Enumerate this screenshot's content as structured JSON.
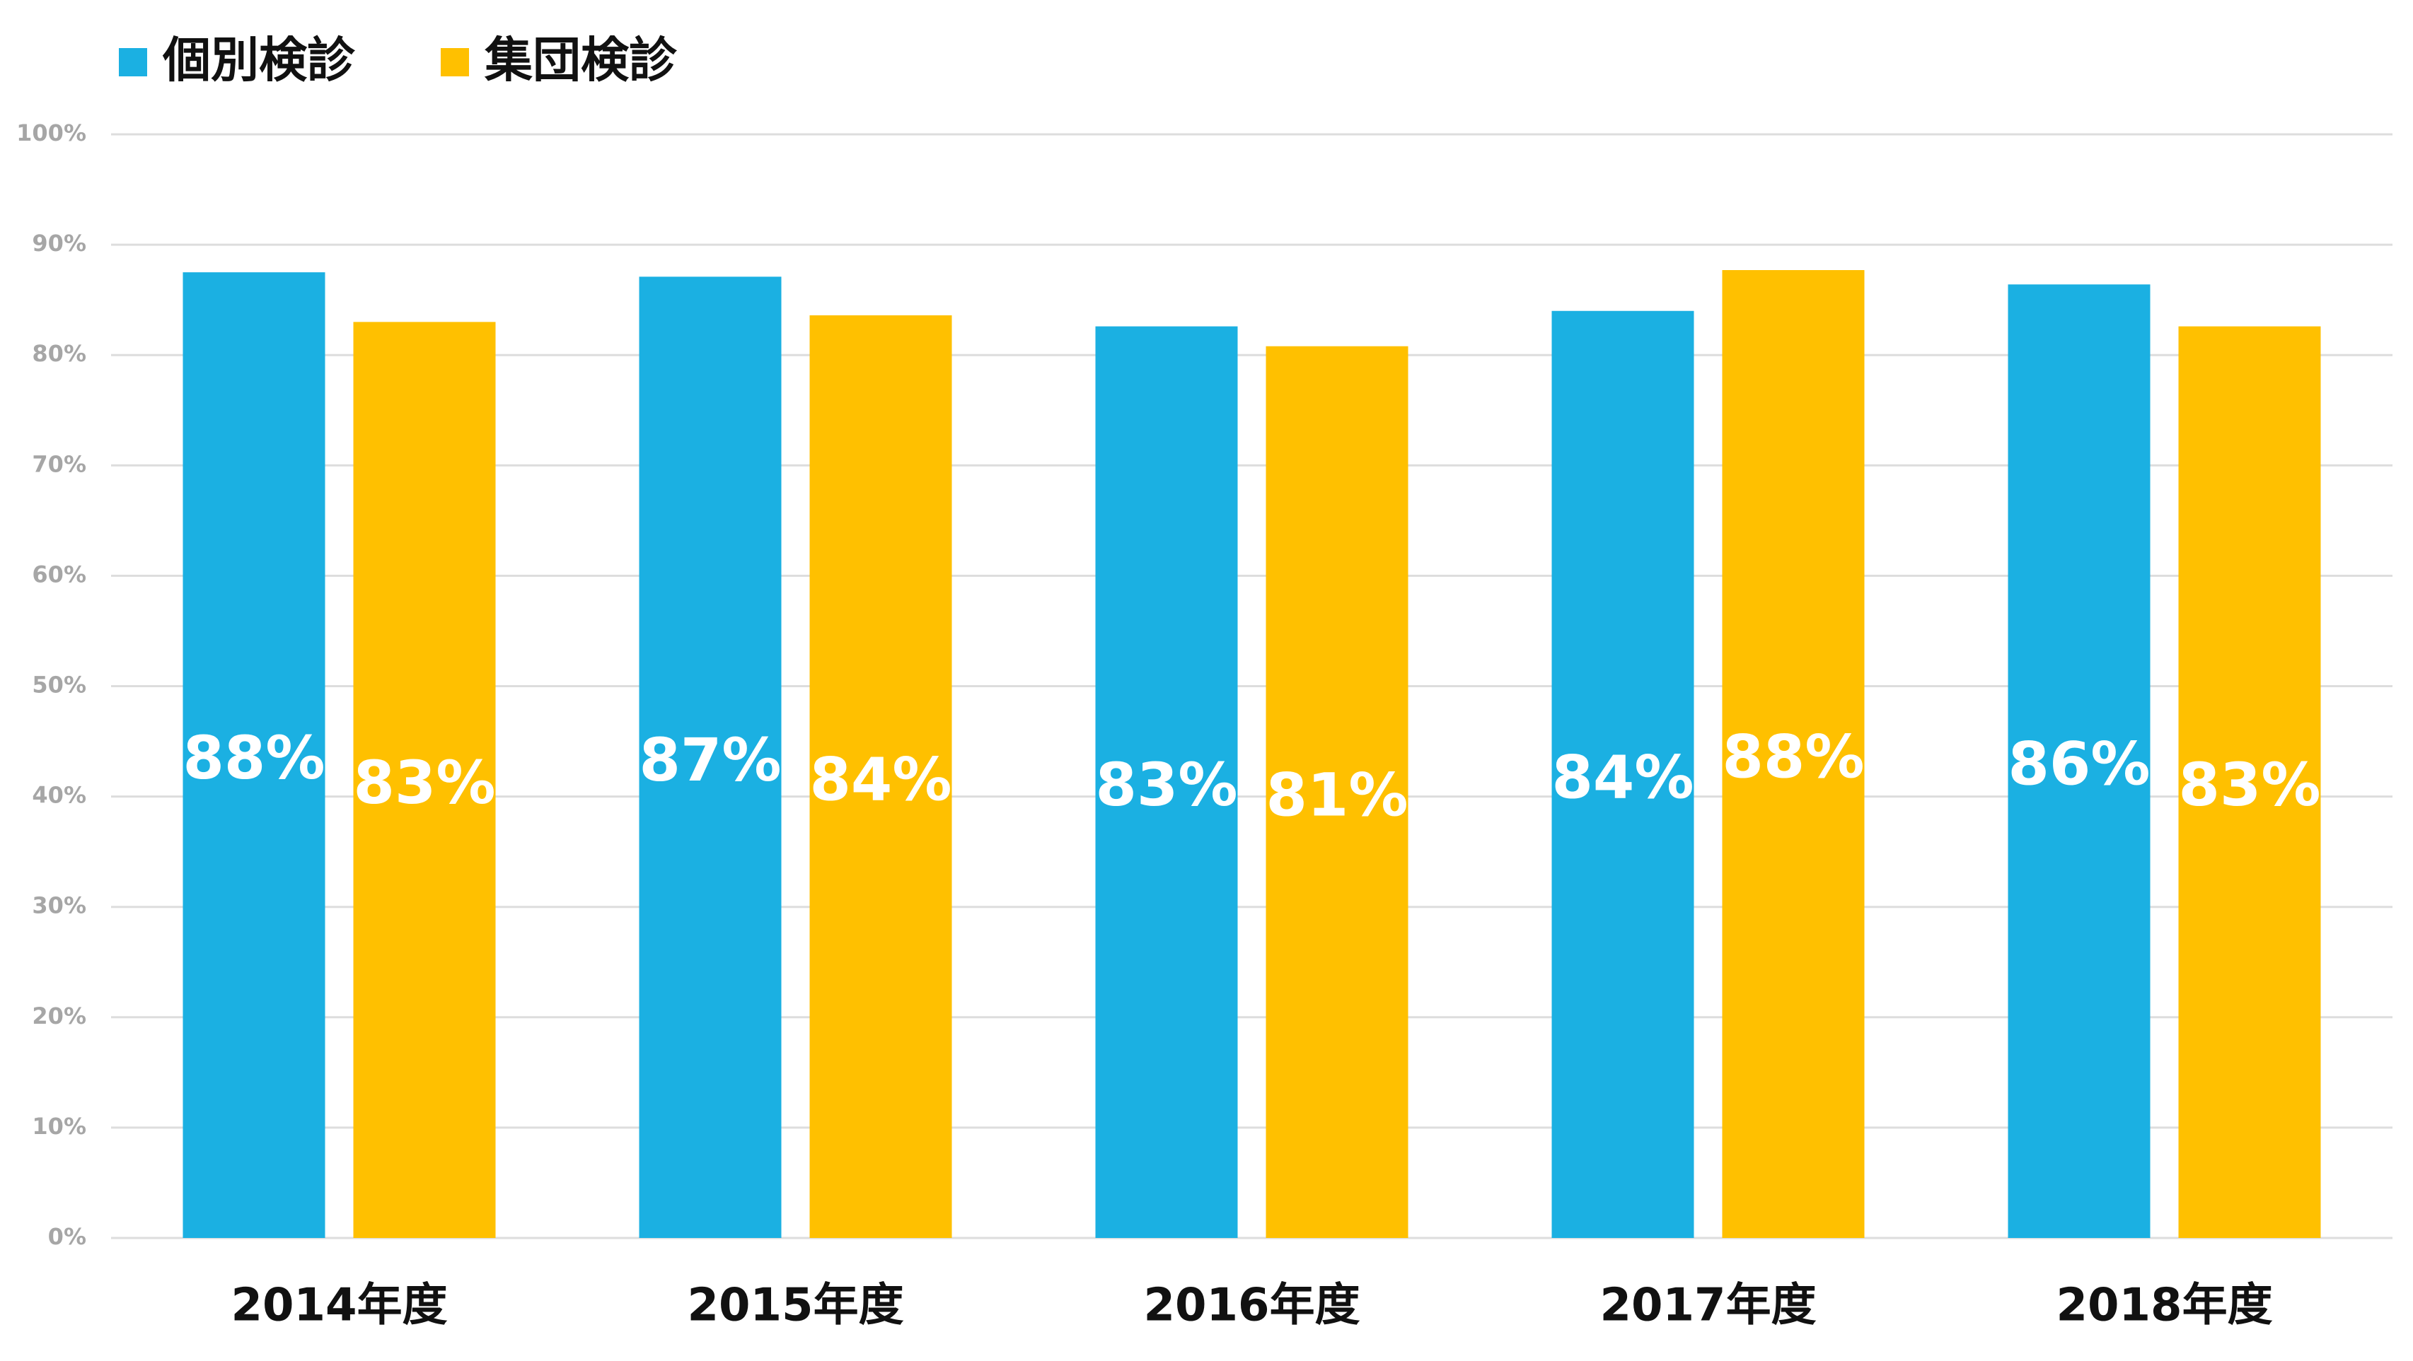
{
  "chart_data": {
    "type": "bar",
    "categories": [
      "2014年度",
      "2015年度",
      "2016年度",
      "2017年度",
      "2018年度"
    ],
    "series": [
      {
        "name": "個別検診",
        "color": "#1bb0e2",
        "values": [
          87.5,
          87.1,
          82.6,
          84.0,
          86.4
        ],
        "value_labels": [
          "88%",
          "87%",
          "83%",
          "84%",
          "86%"
        ]
      },
      {
        "name": "集団検診",
        "color": "#ffc000",
        "values": [
          83.0,
          83.6,
          80.8,
          87.7,
          82.6
        ],
        "value_labels": [
          "83%",
          "84%",
          "81%",
          "88%",
          "83%"
        ]
      }
    ],
    "ylim": [
      0,
      100
    ],
    "yticks": [
      {
        "value": 0,
        "label": "0%"
      },
      {
        "value": 10,
        "label": "10%"
      },
      {
        "value": 20,
        "label": "20%"
      },
      {
        "value": 30,
        "label": "30%"
      },
      {
        "value": 40,
        "label": "40%"
      },
      {
        "value": 50,
        "label": "50%"
      },
      {
        "value": 60,
        "label": "60%"
      },
      {
        "value": 70,
        "label": "70%"
      },
      {
        "value": 80,
        "label": "80%"
      },
      {
        "value": 90,
        "label": "90%"
      },
      {
        "value": 100,
        "label": "100%"
      }
    ],
    "grid": true
  }
}
